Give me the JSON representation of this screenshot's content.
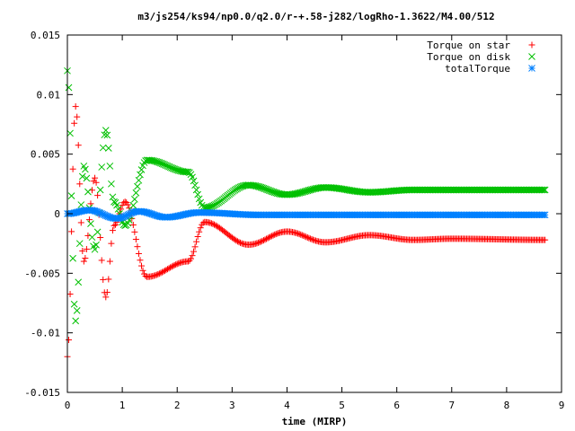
{
  "chart_data": {
    "type": "scatter",
    "title": "m3/js254/ks94/np0.0/q2.0/r-+.58-j282/logRho-1.3622/M4.00/512",
    "xlabel": "time (MIRP)",
    "ylabel": "",
    "xlim": [
      0,
      9
    ],
    "ylim": [
      -0.015,
      0.015
    ],
    "xticks": [
      0,
      1,
      2,
      3,
      4,
      5,
      6,
      7,
      8,
      9
    ],
    "yticks": [
      -0.015,
      -0.01,
      -0.005,
      0,
      0.005,
      0.01,
      0.015
    ],
    "ytick_labels": [
      "-0.015",
      "-0.01",
      "-0.005",
      "0",
      "0.005",
      "0.01",
      "0.015"
    ],
    "grid": false,
    "legend_position": "top-right",
    "t_end": 8.7,
    "series": [
      {
        "name": "Torque on star",
        "marker": "plus",
        "color": "#ff0000",
        "envelope": {
          "t": [
            0.0,
            0.15,
            0.3,
            0.5,
            0.7,
            0.85,
            1.05,
            1.45,
            2.2,
            2.5,
            3.3,
            4.0,
            4.7,
            5.5,
            6.3,
            7.0,
            8.7
          ],
          "y": [
            -0.012,
            0.009,
            -0.004,
            0.003,
            -0.007,
            -0.001,
            0.001,
            -0.0053,
            -0.004,
            -0.0007,
            -0.0026,
            -0.0015,
            -0.0024,
            -0.0018,
            -0.0022,
            -0.0021,
            -0.0022
          ]
        }
      },
      {
        "name": "Torque on disk",
        "marker": "cross",
        "color": "#00c000",
        "envelope": {
          "t": [
            0.0,
            0.15,
            0.3,
            0.5,
            0.7,
            0.85,
            1.05,
            1.45,
            2.2,
            2.5,
            3.3,
            4.0,
            4.7,
            5.5,
            6.3,
            7.0,
            8.7
          ],
          "y": [
            0.012,
            -0.009,
            0.004,
            -0.003,
            0.007,
            0.001,
            -0.001,
            0.0045,
            0.0035,
            0.0005,
            0.0024,
            0.0016,
            0.0022,
            0.0018,
            0.002,
            0.002,
            0.002
          ]
        }
      },
      {
        "name": "totalTorque",
        "marker": "star",
        "color": "#0080ff",
        "envelope": {
          "t": [
            0.0,
            0.4,
            0.9,
            1.3,
            1.8,
            2.4,
            3.5,
            8.7
          ],
          "y": [
            0.0,
            0.0003,
            -0.0004,
            0.0002,
            -0.0003,
            0.0001,
            -0.0001,
            -0.0001
          ]
        }
      }
    ]
  }
}
